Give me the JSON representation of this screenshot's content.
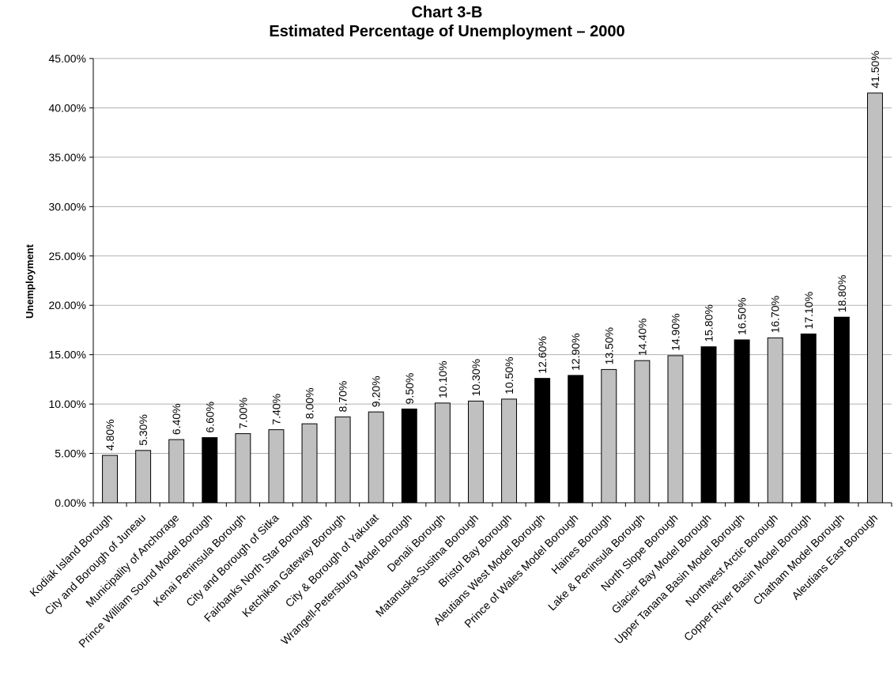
{
  "chart_data": {
    "type": "bar",
    "title": "Chart 3-B",
    "subtitle": "Estimated Percentage of Unemployment – 2000",
    "xlabel": "",
    "ylabel": "Unemployment",
    "ylim": [
      0,
      45
    ],
    "yticks": [
      "0.00%",
      "5.00%",
      "10.00%",
      "15.00%",
      "20.00%",
      "25.00%",
      "30.00%",
      "35.00%",
      "40.00%",
      "45.00%"
    ],
    "grid": true,
    "legend": "none",
    "colors": {
      "standard": "#c0c0c0",
      "model": "#000000"
    },
    "categories": [
      "Kodiak Island Borough",
      "City and Borough of Juneau",
      "Municipality of Anchorage",
      "Prince William Sound Model Borough",
      "Kenai Peninsula Borough",
      "City and Borough of Sitka",
      "Fairbanks North Star Borough",
      "Ketchikan Gateway Borough",
      "City & Borough of Yakutat",
      "Wrangell-Petersburg Model Borough",
      "Denali Borough",
      "Matanuska-Susitna Borough",
      "Bristol Bay Borough",
      "Aleutians West Model Borough",
      "Prince of Wales Model Borough",
      "Haines Borough",
      "Lake & Peninsula Borough",
      "North Slope Borough",
      "Glacier Bay Model Borough",
      "Upper Tanana Basin Model Borough",
      "Northwest Arctic Borough",
      "Copper River Basin Model Borough",
      "Chatham Model Borough",
      "Aleutians East Borough"
    ],
    "values": [
      4.8,
      5.3,
      6.4,
      6.6,
      7.0,
      7.4,
      8.0,
      8.7,
      9.2,
      9.5,
      10.1,
      10.3,
      10.5,
      12.6,
      12.9,
      13.5,
      14.4,
      14.9,
      15.8,
      16.5,
      16.7,
      17.1,
      18.8,
      41.5
    ],
    "data_labels": [
      "4.80%",
      "5.30%",
      "6.40%",
      "6.60%",
      "7.00%",
      "7.40%",
      "8.00%",
      "8.70%",
      "9.20%",
      "9.50%",
      "10.10%",
      "10.30%",
      "10.50%",
      "12.60%",
      "12.90%",
      "13.50%",
      "14.40%",
      "14.90%",
      "15.80%",
      "16.50%",
      "16.70%",
      "17.10%",
      "18.80%",
      "41.50%"
    ],
    "is_model": [
      false,
      false,
      false,
      true,
      false,
      false,
      false,
      false,
      false,
      true,
      false,
      false,
      false,
      true,
      true,
      false,
      false,
      false,
      true,
      true,
      false,
      true,
      true,
      false
    ]
  }
}
